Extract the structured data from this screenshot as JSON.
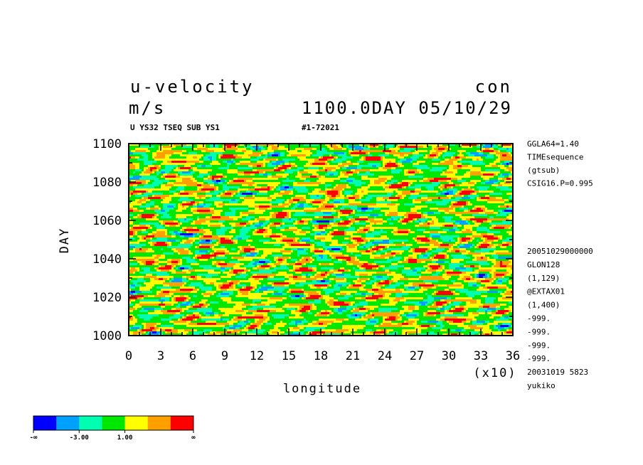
{
  "header": {
    "title_left": "u-velocity",
    "title_right": "con",
    "units": "m/s",
    "time_stamp": "1100.0DAY 05/10/29",
    "subtitle_left": "U YS32 TSEQ SUB YS1",
    "subtitle_right": "#1-72021"
  },
  "side_info": {
    "top": [
      "GGLA64=1.40",
      "TIMEsequence",
      "(gtsub)",
      "CSIG16.P=0.995"
    ],
    "bottom": [
      "20051029000000",
      "GLON128",
      "(1,129)",
      "@EXTAX01",
      "(1,400)",
      "-999.",
      "-999.",
      "-999.",
      "-999.",
      "20031019    5823",
      "yukiko"
    ]
  },
  "chart_data": {
    "type": "heatmap",
    "title": "u-velocity",
    "xlabel": "longitude",
    "ylabel": "DAY",
    "x_multiplier": "(x10)",
    "xlim": [
      0,
      36
    ],
    "ylim": [
      1000,
      1100
    ],
    "x_ticks": [
      "0",
      "3",
      "6",
      "9",
      "12",
      "15",
      "18",
      "21",
      "24",
      "27",
      "30",
      "33",
      "36"
    ],
    "y_ticks": [
      "1000",
      "1020",
      "1040",
      "1060",
      "1080",
      "1100"
    ],
    "legend": {
      "colors": [
        "#0000ff",
        "#00a0ff",
        "#00ffb0",
        "#00e800",
        "#ffff00",
        "#ffa000",
        "#ff0000"
      ],
      "labels": [
        "-∞",
        "-3.00",
        "1.00",
        "∞"
      ]
    }
  }
}
